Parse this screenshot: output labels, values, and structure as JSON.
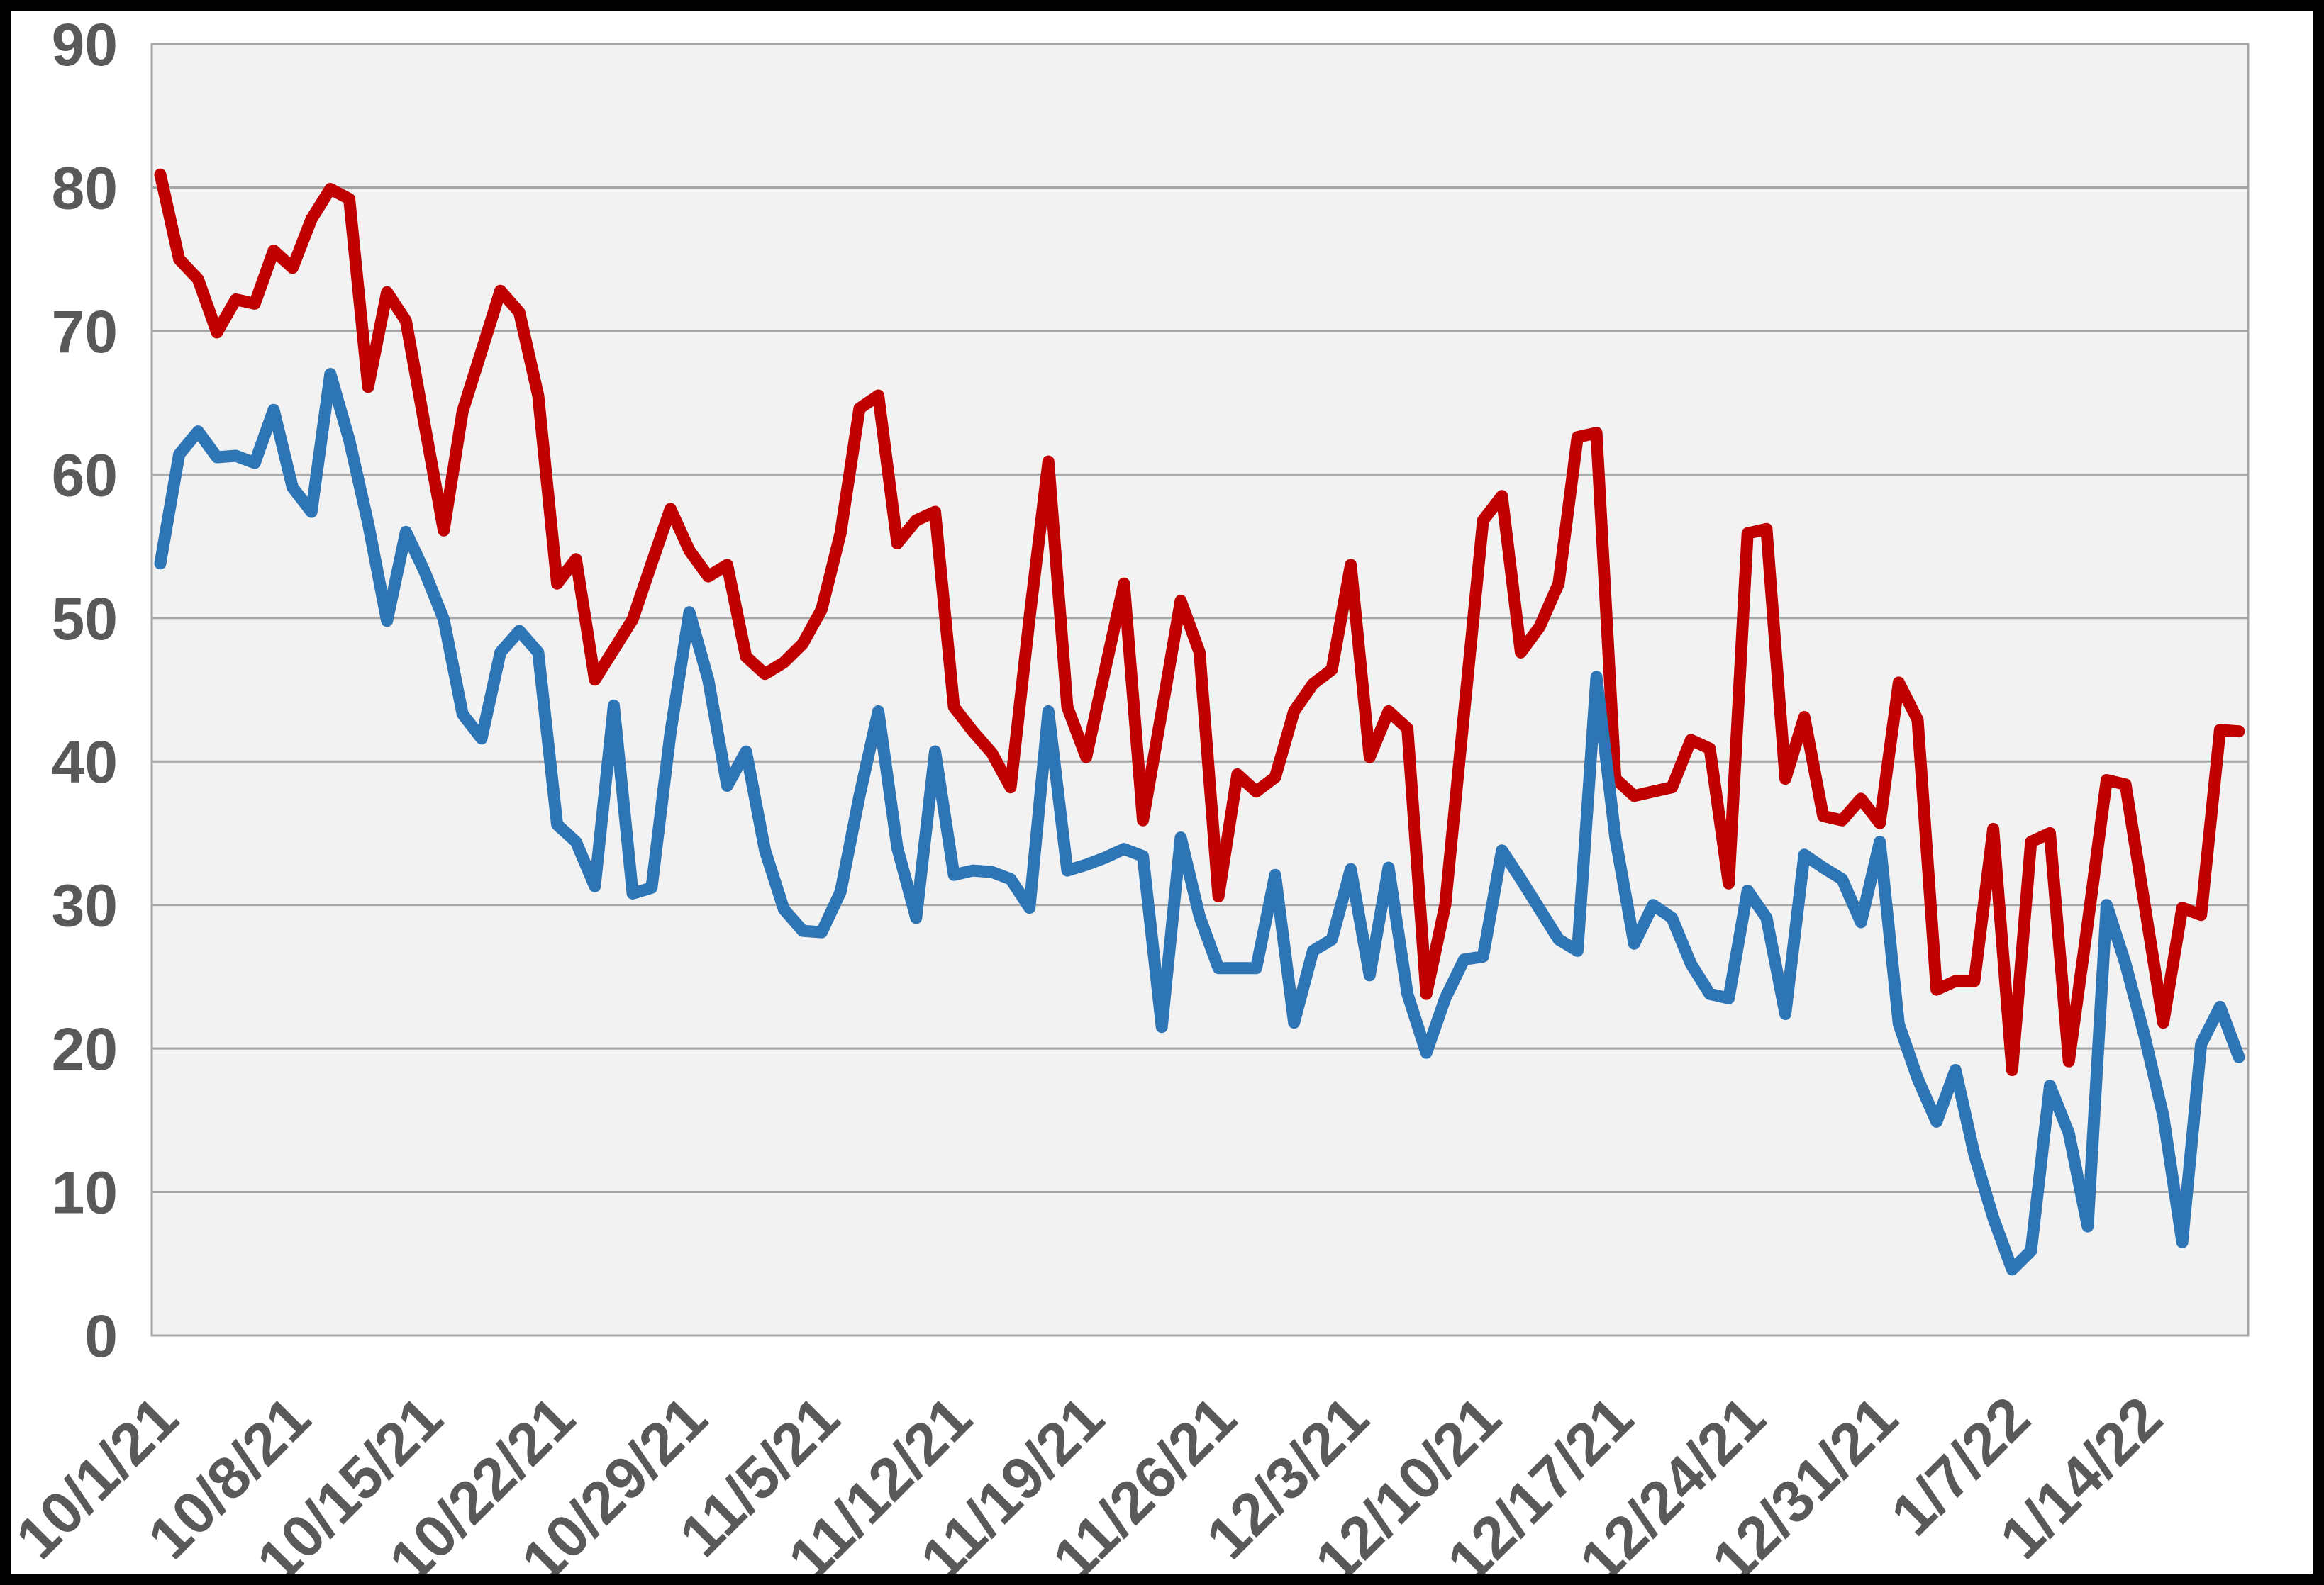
{
  "chart_data": {
    "type": "line",
    "title": "",
    "xlabel": "",
    "ylabel": "",
    "ylim": [
      0,
      90
    ],
    "yticks": [
      0,
      10,
      20,
      30,
      40,
      50,
      60,
      70,
      80,
      90
    ],
    "grid": "horizontal",
    "legend": "none",
    "x_tick_labels": [
      "10/1/21",
      "10/8/21",
      "10/15/21",
      "10/22/21",
      "10/29/21",
      "11/5/21",
      "11/12/21",
      "11/19/21",
      "11/26/21",
      "12/3/21",
      "12/10/21",
      "12/17/21",
      "12/24/21",
      "12/31/21",
      "1/7/22",
      "1/14/22"
    ],
    "x_tick_indices": [
      0,
      7,
      14,
      21,
      28,
      35,
      42,
      49,
      56,
      63,
      70,
      77,
      84,
      91,
      98,
      105
    ],
    "categories": [
      "10/1/21",
      "10/2/21",
      "10/3/21",
      "10/4/21",
      "10/5/21",
      "10/6/21",
      "10/7/21",
      "10/8/21",
      "10/9/21",
      "10/10/21",
      "10/11/21",
      "10/12/21",
      "10/13/21",
      "10/14/21",
      "10/15/21",
      "10/16/21",
      "10/17/21",
      "10/18/21",
      "10/19/21",
      "10/20/21",
      "10/21/21",
      "10/22/21",
      "10/23/21",
      "10/24/21",
      "10/25/21",
      "10/26/21",
      "10/27/21",
      "10/28/21",
      "10/29/21",
      "10/30/21",
      "10/31/21",
      "11/1/21",
      "11/2/21",
      "11/3/21",
      "11/4/21",
      "11/5/21",
      "11/6/21",
      "11/7/21",
      "11/8/21",
      "11/9/21",
      "11/10/21",
      "11/11/21",
      "11/12/21",
      "11/13/21",
      "11/14/21",
      "11/15/21",
      "11/16/21",
      "11/17/21",
      "11/18/21",
      "11/19/21",
      "11/20/21",
      "11/21/21",
      "11/22/21",
      "11/23/21",
      "11/24/21",
      "11/25/21",
      "11/26/21",
      "11/27/21",
      "11/28/21",
      "11/29/21",
      "11/30/21",
      "12/1/21",
      "12/2/21",
      "12/3/21",
      "12/4/21",
      "12/5/21",
      "12/6/21",
      "12/7/21",
      "12/8/21",
      "12/9/21",
      "12/10/21",
      "12/11/21",
      "12/12/21",
      "12/13/21",
      "12/14/21",
      "12/15/21",
      "12/16/21",
      "12/17/21",
      "12/18/21",
      "12/19/21",
      "12/20/21",
      "12/21/21",
      "12/22/21",
      "12/23/21",
      "12/24/21",
      "12/25/21",
      "12/26/21",
      "12/27/21",
      "12/28/21",
      "12/29/21",
      "12/30/21",
      "12/31/21",
      "1/1/22",
      "1/2/22",
      "1/3/22",
      "1/4/22",
      "1/5/22",
      "1/6/22",
      "1/7/22",
      "1/8/22",
      "1/9/22",
      "1/10/22",
      "1/11/22",
      "1/12/22",
      "1/13/22",
      "1/14/22",
      "1/15/22",
      "1/16/22",
      "1/17/22",
      "1/18/22",
      "1/19/22"
    ],
    "series": [
      {
        "name": "red-series",
        "color": "#C00000",
        "values": [
          80.9,
          75.0,
          73.6,
          69.9,
          72.2,
          71.9,
          75.6,
          74.4,
          77.8,
          79.9,
          79.2,
          66.1,
          72.7,
          70.7,
          63.4,
          56.1,
          64.4,
          68.6,
          72.8,
          71.3,
          65.5,
          52.4,
          54.1,
          45.7,
          47.8,
          49.9,
          53.8,
          57.6,
          54.7,
          52.9,
          53.7,
          47.3,
          46.1,
          46.9,
          48.2,
          50.6,
          55.9,
          64.6,
          65.5,
          55.2,
          56.8,
          57.4,
          43.8,
          42.1,
          40.6,
          38.2,
          50.0,
          60.9,
          43.8,
          40.3,
          46.4,
          52.4,
          35.9,
          43.5,
          51.2,
          47.6,
          30.6,
          39.1,
          37.9,
          38.9,
          43.5,
          45.4,
          46.4,
          53.7,
          40.3,
          43.5,
          42.3,
          23.8,
          30.0,
          43.4,
          56.8,
          58.5,
          47.6,
          49.4,
          52.4,
          62.6,
          62.9,
          38.8,
          37.6,
          37.9,
          38.2,
          41.5,
          40.9,
          31.5,
          55.9,
          56.2,
          38.8,
          43.1,
          36.2,
          35.9,
          37.4,
          35.7,
          45.5,
          42.9,
          24.1,
          24.7,
          24.7,
          35.3,
          18.5,
          34.4,
          35.0,
          19.1,
          28.7,
          38.7,
          38.4,
          30.1,
          21.8,
          29.8,
          29.3,
          42.2,
          42.1
        ]
      },
      {
        "name": "blue-series",
        "color": "#2E75B6",
        "values": [
          53.8,
          61.4,
          63.0,
          61.2,
          61.3,
          60.8,
          64.5,
          59.1,
          57.4,
          67.0,
          62.4,
          56.6,
          49.8,
          56.0,
          53.2,
          49.9,
          43.3,
          41.6,
          47.6,
          49.1,
          47.6,
          35.6,
          34.4,
          31.3,
          43.9,
          30.8,
          31.2,
          42.0,
          50.4,
          45.7,
          38.3,
          40.7,
          33.8,
          29.7,
          28.2,
          28.1,
          30.9,
          37.6,
          43.5,
          34.0,
          29.1,
          40.7,
          32.1,
          32.4,
          32.3,
          31.8,
          29.8,
          43.5,
          32.4,
          32.8,
          33.3,
          33.9,
          33.4,
          21.5,
          34.7,
          29.2,
          25.6,
          25.6,
          25.6,
          32.1,
          21.8,
          26.8,
          27.6,
          32.5,
          25.1,
          32.6,
          23.8,
          19.7,
          23.5,
          26.2,
          26.4,
          33.8,
          31.8,
          29.7,
          27.6,
          26.8,
          45.9,
          34.7,
          27.3,
          30.0,
          29.1,
          25.9,
          23.8,
          23.5,
          31.0,
          29.1,
          22.4,
          33.5,
          32.6,
          31.8,
          28.8,
          34.4,
          21.7,
          17.9,
          14.9,
          18.5,
          12.6,
          8.2,
          4.6,
          5.9,
          17.4,
          14.1,
          7.6,
          30.0,
          25.9,
          20.9,
          15.3,
          6.5,
          20.3,
          22.9,
          19.4
        ]
      }
    ]
  },
  "style": {
    "plot_bg": "#F2F2F2",
    "canvas_bg": "#FFFFFF",
    "grid_color": "#A6A6A6",
    "plot_border_color": "#A6A6A6",
    "tick_label_color": "#595959",
    "frame_color": "#000000"
  }
}
